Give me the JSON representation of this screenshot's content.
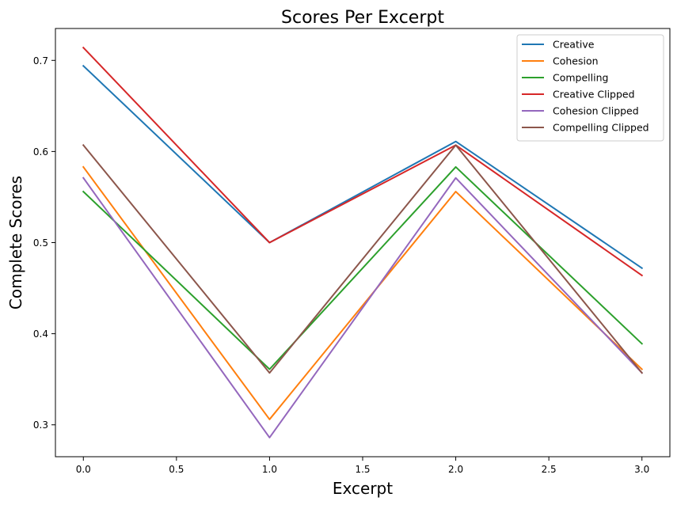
{
  "chart_data": {
    "type": "line",
    "title": "Scores Per Excerpt",
    "xlabel": "Excerpt",
    "ylabel": "Complete Scores",
    "x": [
      0,
      1,
      2,
      3
    ],
    "xlim": [
      -0.15,
      3.15
    ],
    "ylim": [
      0.265,
      0.735
    ],
    "xticks": [
      0.0,
      0.5,
      1.0,
      1.5,
      2.0,
      2.5,
      3.0
    ],
    "xtick_labels": [
      "0.0",
      "0.5",
      "1.0",
      "1.5",
      "2.0",
      "2.5",
      "3.0"
    ],
    "yticks": [
      0.3,
      0.4,
      0.5,
      0.6,
      0.7
    ],
    "ytick_labels": [
      "0.3",
      "0.4",
      "0.5",
      "0.6",
      "0.7"
    ],
    "grid": false,
    "legend_position": "top-right",
    "series": [
      {
        "name": "Creative",
        "color": "#1f77b4",
        "values": [
          0.694,
          0.5,
          0.611,
          0.472
        ]
      },
      {
        "name": "Cohesion",
        "color": "#ff7f0e",
        "values": [
          0.583,
          0.306,
          0.556,
          0.361
        ]
      },
      {
        "name": "Compelling",
        "color": "#2ca02c",
        "values": [
          0.556,
          0.361,
          0.583,
          0.389
        ]
      },
      {
        "name": "Creative Clipped",
        "color": "#d62728",
        "values": [
          0.714,
          0.5,
          0.607,
          0.464
        ]
      },
      {
        "name": "Cohesion Clipped",
        "color": "#9467bd",
        "values": [
          0.571,
          0.286,
          0.571,
          0.357
        ]
      },
      {
        "name": "Compelling Clipped",
        "color": "#8c564b",
        "values": [
          0.607,
          0.357,
          0.607,
          0.357
        ]
      }
    ]
  }
}
